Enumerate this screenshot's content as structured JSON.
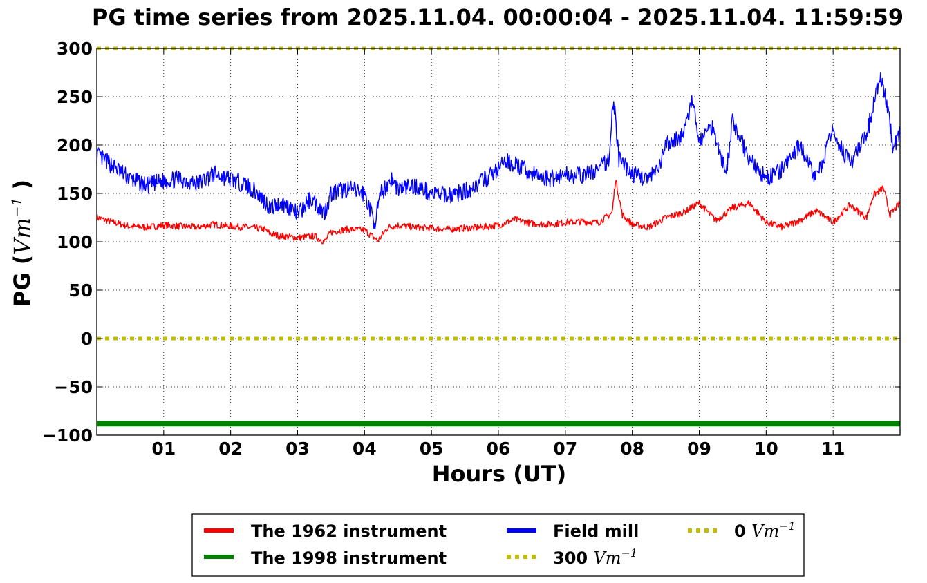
{
  "chart_data": {
    "type": "line",
    "title": "PG time series from 2025.11.04. 00:00:04 - 2025.11.04. 11:59:59",
    "xlabel": "Hours (UT)",
    "ylabel_prefix": "PG (",
    "ylabel_unit": "Vm",
    "ylabel_exp": "−1",
    "ylabel_suffix": " )",
    "xlim": [
      0,
      12
    ],
    "ylim": [
      -100,
      300
    ],
    "grid": true,
    "x_ticks": [
      1,
      2,
      3,
      4,
      5,
      6,
      7,
      8,
      9,
      10,
      11
    ],
    "x_tick_labels": [
      "01",
      "02",
      "03",
      "04",
      "05",
      "06",
      "07",
      "08",
      "09",
      "10",
      "11"
    ],
    "y_ticks": [
      300,
      250,
      200,
      150,
      100,
      50,
      0,
      -50,
      -100
    ],
    "y_tick_labels": [
      "300",
      "250",
      "200",
      "150",
      "100",
      "50",
      "0",
      "−50",
      "−100"
    ],
    "legend_position": "below",
    "series": [
      {
        "name": "The 1962 instrument",
        "color": "#ff0000",
        "x": [
          0,
          0.25,
          0.5,
          0.75,
          1,
          1.25,
          1.5,
          1.75,
          2,
          2.25,
          2.5,
          2.6,
          2.75,
          3,
          3.25,
          3.4,
          3.5,
          3.75,
          4,
          4.2,
          4.35,
          4.5,
          4.75,
          5,
          5.25,
          5.5,
          5.75,
          6,
          6.25,
          6.5,
          6.75,
          7,
          7.25,
          7.5,
          7.7,
          7.75,
          7.85,
          8,
          8.25,
          8.5,
          8.75,
          9,
          9.25,
          9.5,
          9.75,
          10,
          10.25,
          10.5,
          10.75,
          11,
          11.25,
          11.5,
          11.6,
          11.75,
          11.85,
          12
        ],
        "values": [
          125,
          120,
          116,
          115,
          117,
          116,
          115,
          118,
          116,
          115,
          113,
          108,
          106,
          104,
          106,
          100,
          110,
          113,
          112,
          101,
          115,
          117,
          115,
          114,
          113,
          114,
          115,
          117,
          123,
          119,
          118,
          120,
          121,
          120,
          130,
          165,
          128,
          118,
          115,
          125,
          130,
          140,
          122,
          135,
          140,
          120,
          115,
          122,
          132,
          120,
          138,
          125,
          148,
          156,
          128,
          140
        ]
      },
      {
        "name": "Field mill",
        "color": "#0000ff",
        "x": [
          0,
          0.1,
          0.25,
          0.5,
          0.75,
          1,
          1.25,
          1.5,
          1.75,
          2,
          2.25,
          2.4,
          2.6,
          2.75,
          2.9,
          3,
          3.2,
          3.4,
          3.5,
          3.75,
          4,
          4.15,
          4.25,
          4.4,
          4.5,
          4.75,
          5,
          5.25,
          5.5,
          5.75,
          6,
          6.1,
          6.25,
          6.5,
          6.75,
          7,
          7.25,
          7.5,
          7.65,
          7.72,
          7.8,
          8,
          8.25,
          8.4,
          8.5,
          8.75,
          8.9,
          9,
          9.2,
          9.4,
          9.5,
          9.75,
          10,
          10.25,
          10.5,
          10.75,
          11,
          11.25,
          11.5,
          11.6,
          11.7,
          11.8,
          11.9,
          12
        ],
        "values": [
          190,
          185,
          178,
          165,
          158,
          163,
          165,
          160,
          170,
          165,
          158,
          150,
          135,
          140,
          135,
          128,
          145,
          130,
          150,
          155,
          150,
          120,
          150,
          165,
          155,
          158,
          150,
          148,
          152,
          162,
          175,
          183,
          180,
          170,
          165,
          170,
          168,
          175,
          185,
          250,
          185,
          170,
          165,
          175,
          200,
          210,
          245,
          205,
          220,
          170,
          225,
          185,
          165,
          175,
          200,
          165,
          215,
          180,
          210,
          240,
          270,
          245,
          195,
          215
        ]
      },
      {
        "name": "The 1998 instrument",
        "color": "#008000",
        "x": [
          0,
          12
        ],
        "values": [
          -88,
          -88
        ]
      },
      {
        "name": "300 Vm⁻¹",
        "label_prefix": "300 ",
        "label_unit": "Vm",
        "label_exp": "−1",
        "color": "#bfbf00",
        "style": "dotted",
        "x": [
          0,
          12
        ],
        "values": [
          300,
          300
        ]
      },
      {
        "name": "0 Vm⁻¹",
        "label_prefix": "0 ",
        "label_unit": "Vm",
        "label_exp": "−1",
        "color": "#bfbf00",
        "style": "dotted",
        "x": [
          0,
          12
        ],
        "values": [
          0,
          0
        ]
      }
    ]
  }
}
